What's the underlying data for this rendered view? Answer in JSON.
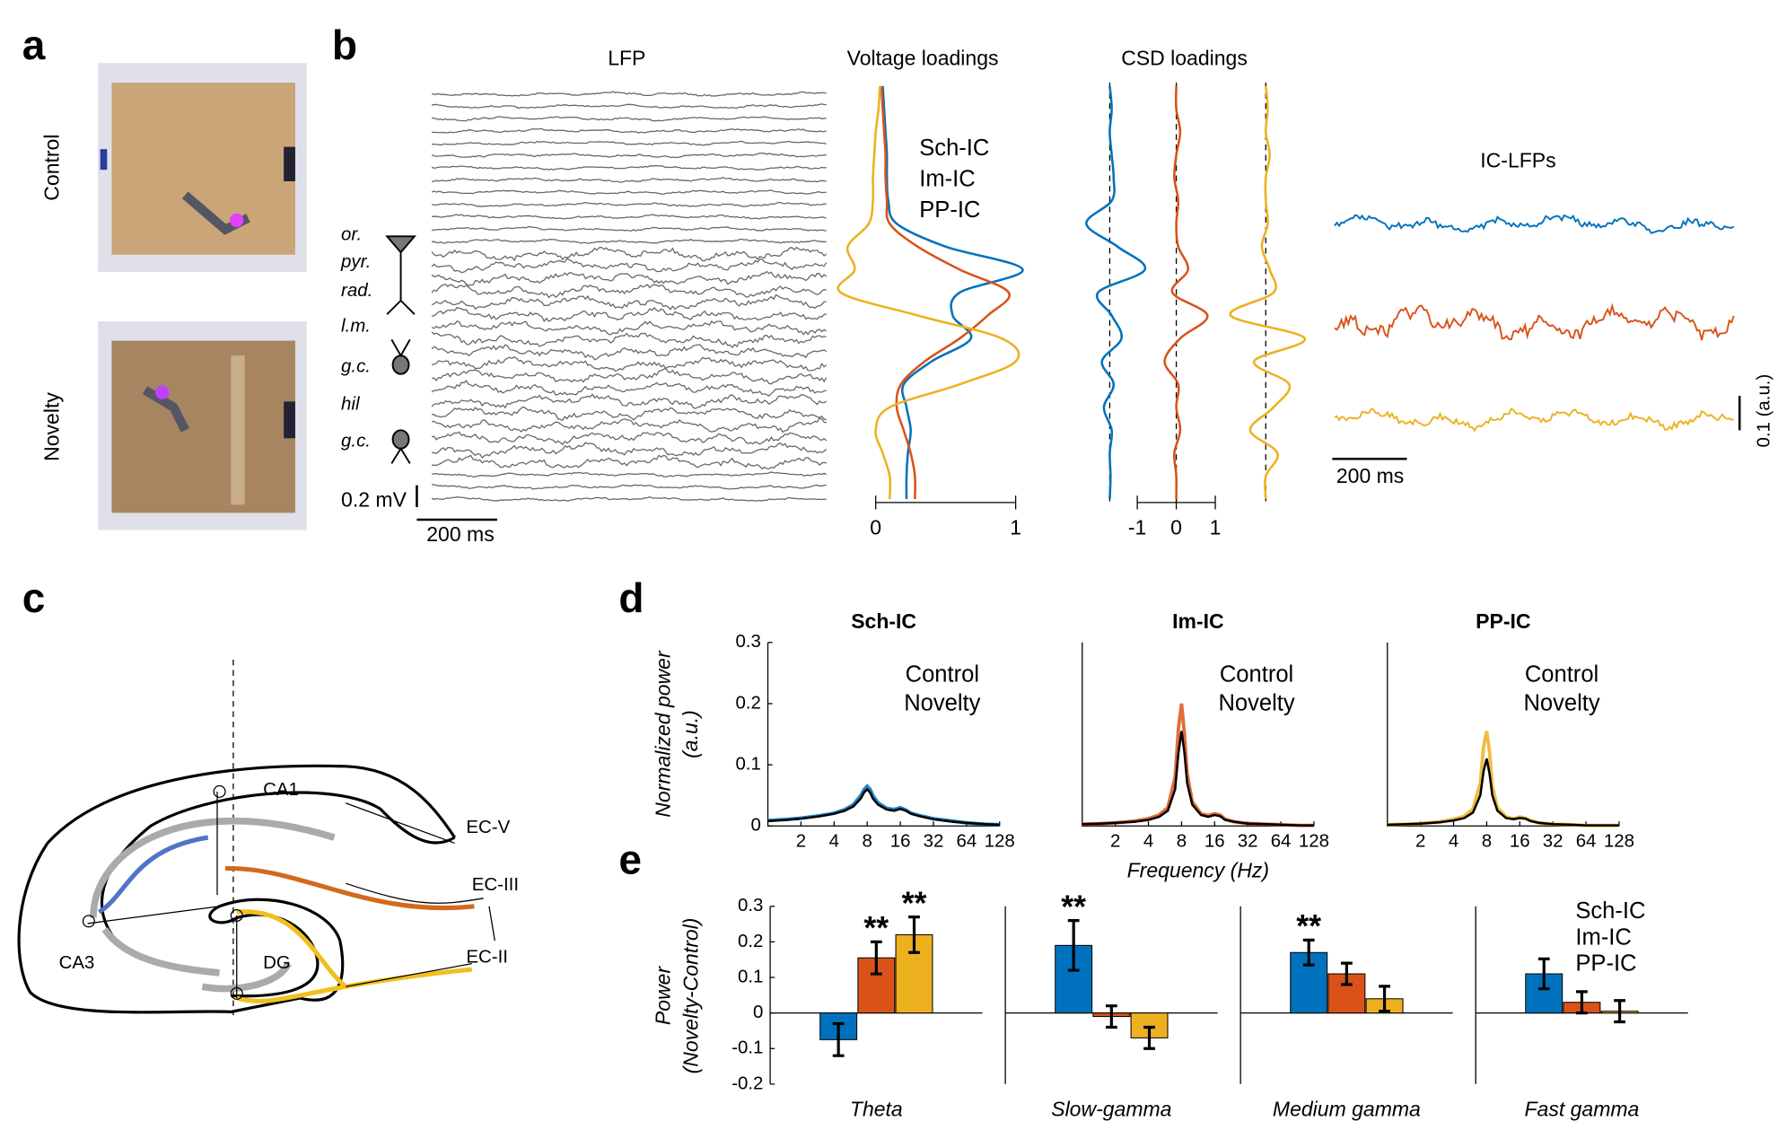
{
  "panel_labels": [
    "a",
    "b",
    "c",
    "d",
    "e"
  ],
  "panel_a": {
    "conditions": [
      "Control",
      "Novelty"
    ]
  },
  "panel_b": {
    "lfp_title": "LFP",
    "layers": [
      "or.",
      "pyr.",
      "rad.",
      "l.m.",
      "g.c.",
      "hil",
      "g.c."
    ],
    "lfp_scale": {
      "amplitude": "0.2 mV",
      "time": "200 ms"
    },
    "ic_lfp_title": "IC-LFPs",
    "ic_scale": {
      "amplitude": "0.1 (a.u.)",
      "time": "200 ms"
    }
  },
  "panel_c": {
    "regions": [
      "CA1",
      "CA3",
      "DG",
      "EC-V",
      "EC-III",
      "EC-II"
    ]
  },
  "chart_data": [
    {
      "type": "profile",
      "title": "Voltage loadings",
      "xlim": [
        0,
        1
      ],
      "xticks": [
        0,
        1
      ],
      "series": [
        {
          "name": "Sch-IC",
          "color": "#0072bd",
          "values": [
            0.05,
            0.06,
            0.07,
            0.08,
            0.08,
            0.09,
            0.15,
            0.5,
            1.05,
            0.6,
            0.55,
            0.68,
            0.4,
            0.2,
            0.22,
            0.25,
            0.23,
            0.22,
            0.22
          ]
        },
        {
          "name": "Im-IC",
          "color": "#d95319",
          "values": [
            0.04,
            0.05,
            0.06,
            0.07,
            0.07,
            0.08,
            0.1,
            0.3,
            0.6,
            0.95,
            0.8,
            0.6,
            0.35,
            0.18,
            0.15,
            0.2,
            0.25,
            0.28,
            0.28
          ]
        },
        {
          "name": "PP-IC",
          "color": "#edb120",
          "values": [
            0.03,
            0.02,
            0.0,
            -0.01,
            -0.02,
            -0.02,
            -0.05,
            -0.2,
            -0.15,
            -0.25,
            0.3,
            0.9,
            1.0,
            0.6,
            0.1,
            0.0,
            0.05,
            0.1,
            0.1
          ]
        }
      ]
    },
    {
      "type": "csd",
      "title": "CSD loadings",
      "xlim": [
        -1,
        1
      ],
      "xticks": [
        -1,
        0,
        1
      ],
      "series": [
        {
          "name": "Sch-IC",
          "color": "#0072bd",
          "values": [
            0,
            0.05,
            0,
            0.05,
            0.1,
            0.05,
            -0.6,
            0.2,
            0.9,
            -0.3,
            0.05,
            0.3,
            -0.2,
            0.1,
            -0.15,
            0.05,
            0,
            0.02,
            0
          ]
        },
        {
          "name": "Im-IC",
          "color": "#d95319",
          "values": [
            0,
            0,
            0.1,
            0,
            -0.05,
            0.05,
            0,
            0.05,
            0.3,
            -0.1,
            0.8,
            0.1,
            -0.3,
            0.05,
            0,
            0.1,
            -0.05,
            0,
            0
          ]
        },
        {
          "name": "PP-IC",
          "color": "#edb120",
          "values": [
            0,
            0.05,
            0,
            0.1,
            0,
            0,
            0.05,
            -0.1,
            0.1,
            0.2,
            -0.9,
            1.0,
            -0.3,
            0.6,
            0.2,
            -0.4,
            0.3,
            0,
            0
          ]
        }
      ]
    },
    {
      "type": "line",
      "title": "Sch-IC",
      "xscale": "log2",
      "x": [
        1,
        1.5,
        2,
        3,
        4,
        5,
        6,
        7,
        7.5,
        8,
        8.5,
        9,
        10,
        12,
        14,
        16,
        18,
        20,
        24,
        32,
        48,
        64,
        96,
        128
      ],
      "xlim": [
        1,
        128
      ],
      "xticks": [
        2,
        4,
        8,
        16,
        32,
        64,
        128
      ],
      "ylim": [
        0,
        0.3
      ],
      "yticks": [
        0,
        0.1,
        0.2,
        0.3
      ],
      "ylabel": [
        "Normalized power",
        "(a.u.)"
      ],
      "series": [
        {
          "name": "Control",
          "color": "#000000",
          "values": [
            0.008,
            0.01,
            0.012,
            0.016,
            0.02,
            0.025,
            0.032,
            0.045,
            0.055,
            0.06,
            0.055,
            0.045,
            0.035,
            0.027,
            0.025,
            0.028,
            0.025,
            0.02,
            0.016,
            0.011,
            0.007,
            0.005,
            0.003,
            0.002
          ]
        },
        {
          "name": "Novelty",
          "color": "#0072bd",
          "values": [
            0.009,
            0.011,
            0.013,
            0.017,
            0.021,
            0.027,
            0.035,
            0.05,
            0.06,
            0.065,
            0.06,
            0.05,
            0.038,
            0.029,
            0.027,
            0.03,
            0.026,
            0.021,
            0.017,
            0.012,
            0.008,
            0.005,
            0.003,
            0.002
          ]
        }
      ]
    },
    {
      "type": "line",
      "title": "Im-IC",
      "xscale": "log2",
      "x": [
        1,
        1.5,
        2,
        3,
        4,
        5,
        6,
        7,
        7.5,
        8,
        8.5,
        9,
        10,
        12,
        14,
        16,
        18,
        20,
        24,
        32,
        48,
        64,
        96,
        128
      ],
      "xlim": [
        1,
        128
      ],
      "xticks": [
        2,
        4,
        8,
        16,
        32,
        64,
        128
      ],
      "ylim": [
        0,
        0.3
      ],
      "xlabel": "Frequency (Hz)",
      "series": [
        {
          "name": "Control",
          "color": "#000000",
          "values": [
            0.003,
            0.004,
            0.005,
            0.007,
            0.01,
            0.015,
            0.025,
            0.06,
            0.12,
            0.155,
            0.12,
            0.07,
            0.035,
            0.018,
            0.015,
            0.018,
            0.016,
            0.01,
            0.007,
            0.004,
            0.003,
            0.002,
            0.001,
            0.001
          ]
        },
        {
          "name": "Novelty",
          "color": "#d95319",
          "values": [
            0.003,
            0.004,
            0.005,
            0.008,
            0.012,
            0.018,
            0.03,
            0.08,
            0.16,
            0.2,
            0.15,
            0.085,
            0.04,
            0.02,
            0.017,
            0.02,
            0.018,
            0.011,
            0.007,
            0.004,
            0.003,
            0.002,
            0.001,
            0.001
          ]
        }
      ]
    },
    {
      "type": "line",
      "title": "PP-IC",
      "xscale": "log2",
      "x": [
        1,
        1.5,
        2,
        3,
        4,
        5,
        6,
        7,
        7.5,
        8,
        8.5,
        9,
        10,
        12,
        14,
        16,
        18,
        20,
        24,
        32,
        48,
        64,
        96,
        128
      ],
      "xlim": [
        1,
        128
      ],
      "xticks": [
        2,
        4,
        8,
        16,
        32,
        64,
        128
      ],
      "ylim": [
        0,
        0.3
      ],
      "series": [
        {
          "name": "Control",
          "color": "#000000",
          "values": [
            0.002,
            0.003,
            0.004,
            0.006,
            0.009,
            0.013,
            0.022,
            0.05,
            0.09,
            0.11,
            0.085,
            0.05,
            0.025,
            0.013,
            0.011,
            0.013,
            0.012,
            0.008,
            0.005,
            0.003,
            0.002,
            0.001,
            0.001,
            0.001
          ]
        },
        {
          "name": "Novelty",
          "color": "#edb120",
          "values": [
            0.002,
            0.003,
            0.004,
            0.007,
            0.011,
            0.016,
            0.028,
            0.07,
            0.13,
            0.155,
            0.12,
            0.065,
            0.03,
            0.015,
            0.012,
            0.015,
            0.013,
            0.009,
            0.005,
            0.003,
            0.002,
            0.001,
            0.001,
            0.001
          ]
        }
      ]
    },
    {
      "type": "bar",
      "categories": [
        "Theta",
        "Slow-gamma",
        "Medium gamma",
        "Fast gamma"
      ],
      "ylim": [
        -0.2,
        0.3
      ],
      "yticks": [
        -0.2,
        -0.1,
        0,
        0.1,
        0.2,
        0.3
      ],
      "ylabel": [
        "Power",
        "(Novelty-Control)"
      ],
      "legend": "upper right",
      "series": [
        {
          "name": "Sch-IC",
          "color": "#0072bd",
          "values": [
            -0.075,
            0.19,
            0.17,
            0.11
          ],
          "errors": [
            0.045,
            0.07,
            0.035,
            0.042
          ],
          "significance": [
            null,
            "**",
            "**",
            null
          ]
        },
        {
          "name": "Im-IC",
          "color": "#d95319",
          "values": [
            0.155,
            -0.01,
            0.11,
            0.03
          ],
          "errors": [
            0.045,
            0.03,
            0.03,
            0.03
          ],
          "significance": [
            "**",
            null,
            null,
            null
          ]
        },
        {
          "name": "PP-IC",
          "color": "#edb120",
          "values": [
            0.22,
            -0.07,
            0.04,
            0.005
          ],
          "errors": [
            0.05,
            0.03,
            0.035,
            0.03
          ],
          "significance": [
            "**",
            null,
            null,
            null
          ]
        }
      ]
    }
  ]
}
